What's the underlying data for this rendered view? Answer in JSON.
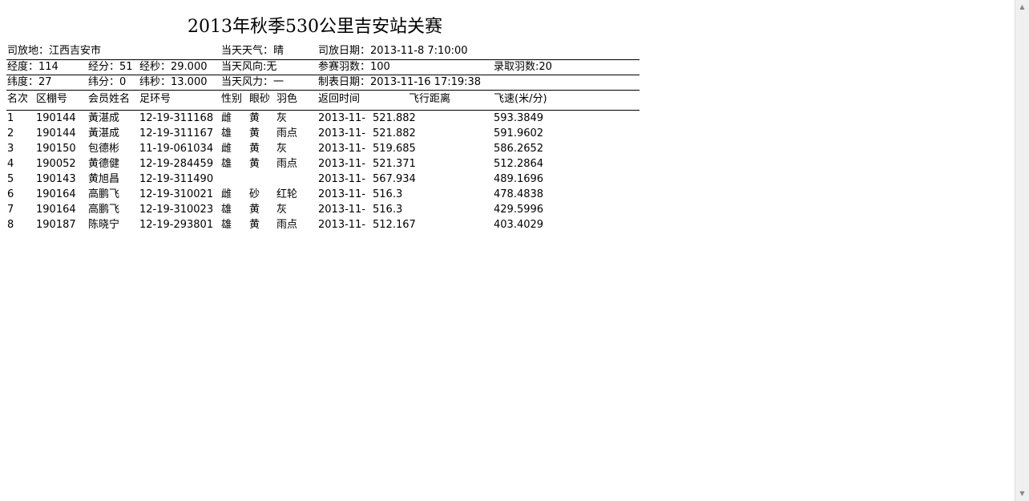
{
  "title": "2013年秋季530公里吉安站关赛",
  "info": {
    "release_place": "司放地：江西吉安市",
    "weather": "当天天气：晴",
    "release_date": "司放日期：2013-11-8 7:10:00",
    "longitude_deg": "经度：114",
    "longitude_min": "经分：51",
    "longitude_sec": "经秒：29.000",
    "wind_direction": "当天风向:无",
    "entries": "参赛羽数：100",
    "winners": "录取羽数:20",
    "latitude_deg": "纬度：27",
    "latitude_min": "纬分：0",
    "latitude_sec": "纬秒：13.000",
    "wind_force": "当天风力：一",
    "table_date": "制表日期：2013-11-16 17:19:38"
  },
  "columns": [
    "名次",
    "区棚号",
    "会员姓名",
    "足环号",
    "性别",
    "眼砂",
    "羽色",
    "返回时间",
    "飞行距离",
    "飞速(米/分)"
  ],
  "rows": [
    [
      "1",
      "190144",
      "黃湛成",
      "12-19-311168",
      "雌",
      "黄",
      "灰",
      "2013-11-",
      "521.882",
      "593.3849"
    ],
    [
      "2",
      "190144",
      "黃湛成",
      "12-19-311167",
      "雄",
      "黄",
      "雨点",
      "2013-11-",
      "521.882",
      "591.9602"
    ],
    [
      "3",
      "190150",
      "包德彬",
      "11-19-061034",
      "雌",
      "黄",
      "灰",
      "2013-11-",
      "519.685",
      "586.2652"
    ],
    [
      "4",
      "190052",
      "黄德健",
      "12-19-284459",
      "雄",
      "黄",
      "雨点",
      "2013-11-",
      "521.371",
      "512.2864"
    ],
    [
      "5",
      "190143",
      "黄旭昌",
      "12-19-311490",
      "",
      "",
      "",
      "2013-11-",
      "567.934",
      "489.1696"
    ],
    [
      "6",
      "190164",
      "高鹏飞",
      "12-19-310021",
      "雌",
      "砂",
      "红轮",
      "2013-11-",
      "516.3",
      "478.4838"
    ],
    [
      "7",
      "190164",
      "高鹏飞",
      "12-19-310023",
      "雄",
      "黄",
      "灰",
      "2013-11-",
      "516.3",
      "429.5996"
    ],
    [
      "8",
      "190187",
      "陈晓宁",
      "12-19-293801",
      "雄",
      "黄",
      "雨点",
      "2013-11-",
      "512.167",
      "403.4029"
    ]
  ]
}
